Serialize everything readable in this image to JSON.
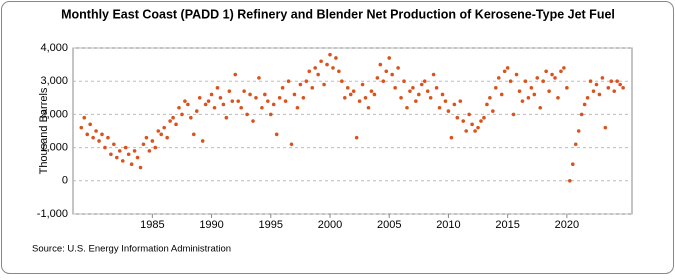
{
  "chart_data": {
    "type": "scatter",
    "title": "Monthly East Coast (PADD 1) Refinery and Blender Net Production of Kerosene-Type Jet Fuel",
    "y_label": "Thousand Barrels",
    "source": "Source: U.S. Energy Information Administration",
    "color": "#d9531e",
    "grid": true,
    "xlim": [
      1978.3,
      2025.5
    ],
    "ylim": [
      -1000,
      4000
    ],
    "xticks": [
      1985,
      1990,
      1995,
      2000,
      2005,
      2010,
      2015,
      2020
    ],
    "yticks": [
      {
        "value": -1000,
        "label": "-1,000"
      },
      0,
      {
        "value": 1000,
        "label": "1,000"
      },
      {
        "value": 2000,
        "label": "2,000"
      },
      {
        "value": 3000,
        "label": "3,000"
      },
      {
        "value": 4000,
        "label": "4,000"
      }
    ],
    "x": [
      1979,
      1979.25,
      1979.5,
      1979.75,
      1980,
      1980.25,
      1980.5,
      1980.75,
      1981,
      1981.25,
      1981.5,
      1981.75,
      1982,
      1982.25,
      1982.5,
      1982.75,
      1983,
      1983.25,
      1983.5,
      1983.75,
      1984,
      1984.25,
      1984.5,
      1984.75,
      1985,
      1985.25,
      1985.5,
      1985.75,
      1986,
      1986.25,
      1986.5,
      1986.75,
      1987,
      1987.25,
      1987.5,
      1987.75,
      1988,
      1988.25,
      1988.5,
      1988.75,
      1989,
      1989.25,
      1989.5,
      1989.75,
      1990,
      1990.25,
      1990.5,
      1990.75,
      1991,
      1991.25,
      1991.5,
      1991.75,
      1992,
      1992.25,
      1992.5,
      1992.75,
      1993,
      1993.25,
      1993.5,
      1993.75,
      1994,
      1994.25,
      1994.5,
      1994.75,
      1995,
      1995.25,
      1995.5,
      1995.75,
      1996,
      1996.25,
      1996.5,
      1996.75,
      1997,
      1997.25,
      1997.5,
      1997.75,
      1998,
      1998.25,
      1998.5,
      1998.75,
      1999,
      1999.25,
      1999.5,
      1999.75,
      2000,
      2000.25,
      2000.5,
      2000.75,
      2001,
      2001.25,
      2001.5,
      2001.75,
      2002,
      2002.25,
      2002.5,
      2002.75,
      2003,
      2003.25,
      2003.5,
      2003.75,
      2004,
      2004.25,
      2004.5,
      2004.75,
      2005,
      2005.25,
      2005.5,
      2005.75,
      2006,
      2006.25,
      2006.5,
      2006.75,
      2007,
      2007.25,
      2007.5,
      2007.75,
      2008,
      2008.25,
      2008.5,
      2008.75,
      2009,
      2009.25,
      2009.5,
      2009.75,
      2010,
      2010.25,
      2010.5,
      2010.75,
      2011,
      2011.25,
      2011.5,
      2011.75,
      2012,
      2012.25,
      2012.5,
      2012.75,
      2013,
      2013.25,
      2013.5,
      2013.75,
      2014,
      2014.25,
      2014.5,
      2014.75,
      2015,
      2015.25,
      2015.5,
      2015.75,
      2016,
      2016.25,
      2016.5,
      2016.75,
      2017,
      2017.25,
      2017.5,
      2017.75,
      2018,
      2018.25,
      2018.5,
      2018.75,
      2019,
      2019.25,
      2019.5,
      2019.75,
      2020,
      2020.25,
      2020.5,
      2020.75,
      2021,
      2021.25,
      2021.5,
      2021.75,
      2022,
      2022.25,
      2022.5,
      2022.75,
      2023,
      2023.25,
      2023.5,
      2023.75,
      2024,
      2024.25,
      2024.5,
      2024.75
    ],
    "values": [
      1600,
      1900,
      1400,
      1700,
      1300,
      1500,
      1200,
      1400,
      1000,
      1300,
      800,
      1100,
      700,
      900,
      600,
      1000,
      800,
      500,
      900,
      700,
      400,
      1100,
      1300,
      900,
      1200,
      1000,
      1500,
      1400,
      1600,
      1300,
      1800,
      1900,
      1700,
      2200,
      2000,
      2400,
      2300,
      1900,
      1400,
      2100,
      2500,
      1200,
      2300,
      2400,
      2600,
      2200,
      2800,
      2500,
      2300,
      1900,
      2700,
      2400,
      3200,
      2400,
      2200,
      2700,
      2000,
      2600,
      1800,
      2500,
      3100,
      2200,
      2600,
      2400,
      2000,
      2300,
      1400,
      2500,
      2800,
      2400,
      3000,
      1100,
      2600,
      2200,
      2900,
      2500,
      3000,
      3300,
      2800,
      3400,
      3200,
      3600,
      2900,
      3500,
      3800,
      3400,
      3700,
      3300,
      3000,
      2500,
      2800,
      2600,
      2700,
      1300,
      2400,
      2900,
      2500,
      2200,
      2700,
      2600,
      3100,
      3500,
      3000,
      3300,
      3700,
      3200,
      2800,
      3400,
      2500,
      3000,
      2200,
      2700,
      2800,
      2400,
      2600,
      2900,
      3000,
      2700,
      2500,
      3200,
      2800,
      2200,
      2600,
      2400,
      2100,
      1300,
      2300,
      1900,
      2400,
      1800,
      1500,
      2000,
      1700,
      1500,
      1600,
      1800,
      1900,
      2300,
      2500,
      2100,
      2800,
      3100,
      2600,
      3300,
      3400,
      3000,
      2000,
      3200,
      2700,
      2400,
      3000,
      2500,
      2800,
      2600,
      3100,
      2200,
      3000,
      3300,
      2700,
      3200,
      3100,
      2500,
      3300,
      3400,
      2800,
      0,
      500,
      1100,
      1500,
      2000,
      2300,
      2500,
      3000,
      2700,
      2900,
      2600,
      3100,
      1600,
      2800,
      3000,
      2700,
      3000,
      2900,
      2800
    ]
  }
}
